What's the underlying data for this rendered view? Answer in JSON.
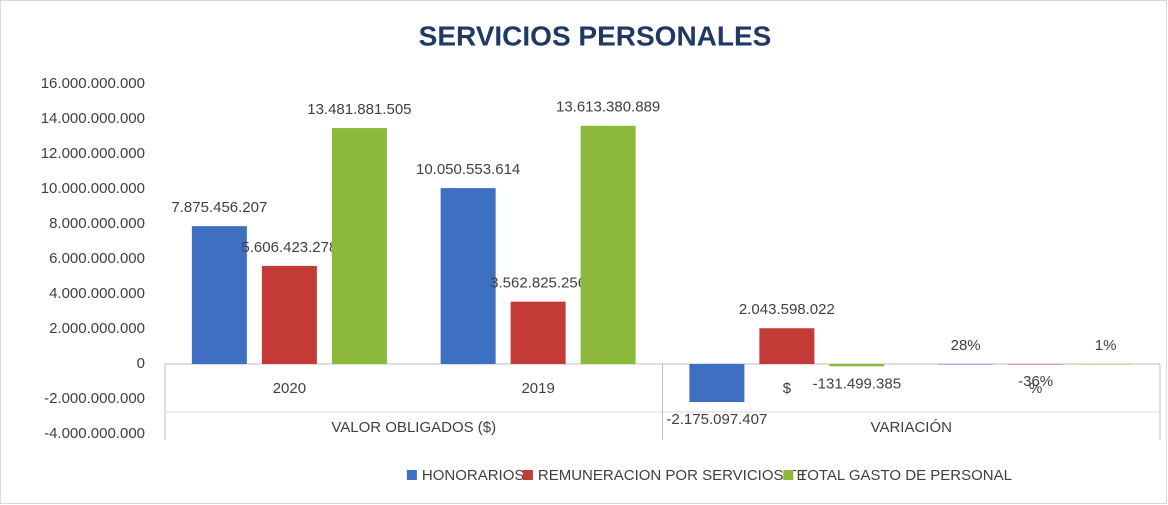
{
  "chart_data": {
    "type": "bar",
    "title": "SERVICIOS PERSONALES",
    "category_groups": [
      {
        "name": "VALOR OBLIGADOS ($)",
        "categories": [
          "2020",
          "2019"
        ]
      },
      {
        "name": "VARIACIÓN",
        "categories": [
          "$",
          "%"
        ]
      }
    ],
    "series": [
      {
        "name": "HONORARIOS",
        "color": "#3f6fc0",
        "values": [
          7875456207,
          10050553614,
          -2175097407,
          0.28
        ],
        "value_labels": [
          "7.875.456.207",
          "10.050.553.614",
          "-2.175.097.407",
          "28%"
        ]
      },
      {
        "name": "REMUNERACION POR SERVICIOS TE",
        "color": "#c43a36",
        "values": [
          5606423278,
          3562825256,
          2043598022,
          -0.36
        ],
        "value_labels": [
          "5.606.423.278",
          "3.562.825.256",
          "2.043.598.022",
          "-36%"
        ]
      },
      {
        "name": "TOTAL GASTO DE PERSONAL",
        "color": "#8cb83c",
        "values": [
          13481881505,
          13613380889,
          -131499385,
          0.01
        ],
        "value_labels": [
          "13.481.881.505",
          "13.613.380.889",
          "-131.499.385",
          "1%"
        ]
      }
    ],
    "ylim": [
      -4000000000,
      16000000000
    ],
    "yticks": [
      {
        "value": -4000000000,
        "label": "-4.000.000.000"
      },
      {
        "value": -2000000000,
        "label": "-2.000.000.000"
      },
      0,
      {
        "value": 2000000000,
        "label": "2.000.000.000"
      },
      {
        "value": 4000000000,
        "label": "4.000.000.000"
      },
      {
        "value": 6000000000,
        "label": "6.000.000.000"
      },
      {
        "value": 8000000000,
        "label": "8.000.000.000"
      },
      {
        "value": 10000000000,
        "label": "10.000.000.000"
      },
      {
        "value": 12000000000,
        "label": "12.000.000.000"
      },
      {
        "value": 14000000000,
        "label": "14.000.000.000"
      },
      {
        "value": 16000000000,
        "label": "16.000.000.000"
      }
    ],
    "grid": false,
    "legend": "bottom"
  }
}
